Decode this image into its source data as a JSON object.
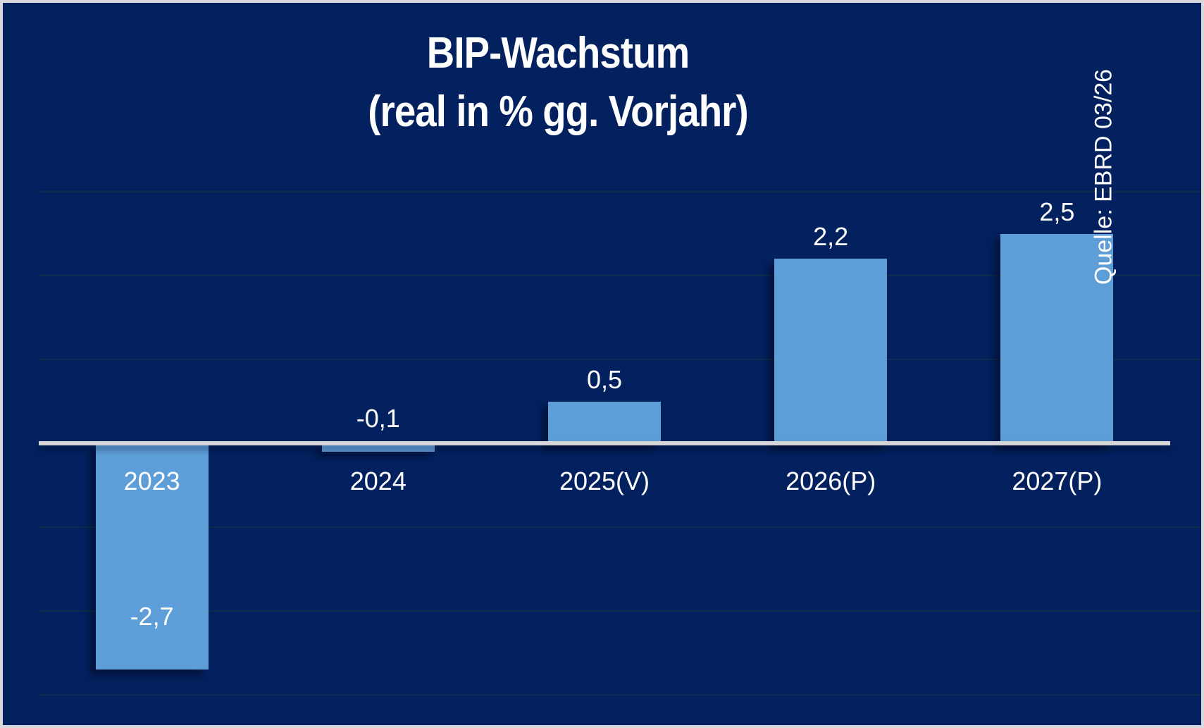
{
  "chart_data": {
    "type": "bar",
    "title": "BIP-Wachstum",
    "subtitle": "(real in % gg. Vorjahr)",
    "source": "Quelle: EBRD 03/26",
    "categories": [
      "2023",
      "2024",
      "2025(V)",
      "2026(P)",
      "2027(P)"
    ],
    "values": [
      -2.7,
      -0.1,
      0.5,
      2.2,
      2.5
    ],
    "value_labels": [
      "-2,7",
      "-0,1",
      "0,5",
      "2,2",
      "2,5"
    ],
    "ylabel": "",
    "xlabel": "",
    "ylim": [
      -3.4,
      3.2
    ],
    "gridlines_at": [
      3,
      2,
      1,
      -1,
      -2,
      -3
    ],
    "legend": "none",
    "grid": "faint horizontal lines",
    "colors": {
      "background": "#03215f",
      "bar": "#5d9dd8",
      "axis_line": "#d6d6d8",
      "frame": "#d9d9dc",
      "gridline": "#0e2d4d",
      "text": "#ffffff"
    }
  }
}
